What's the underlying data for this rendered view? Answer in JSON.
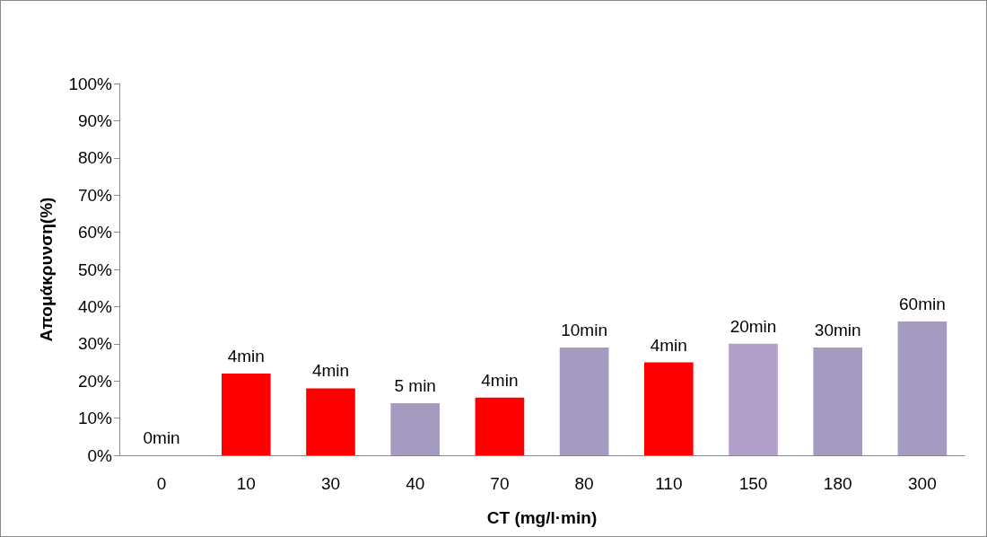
{
  "chart_data": {
    "type": "bar",
    "xlabel": "CT (mg/l·min)",
    "ylabel": "Απομάκρυνση(%)",
    "categories": [
      "0",
      "10",
      "30",
      "40",
      "70",
      "80",
      "110",
      "150",
      "180",
      "300"
    ],
    "values": [
      0,
      22,
      18,
      14,
      15.5,
      29,
      25,
      30,
      29,
      36
    ],
    "colors": [
      "#a59ac0",
      "#ff0000",
      "#ff0000",
      "#a59ac0",
      "#ff0000",
      "#a59ac0",
      "#ff0000",
      "#b1a0c9",
      "#a59ac0",
      "#a59ac0"
    ],
    "annotations": [
      {
        "text": "0min",
        "x": "0",
        "y": 0
      },
      {
        "text": "4min",
        "x": "10",
        "y": 22
      },
      {
        "text": "4min",
        "x": "30",
        "y": 18
      },
      {
        "text": "5 min",
        "x": "40",
        "y": 14
      },
      {
        "text": "4min",
        "x": "70",
        "y": 15.5
      },
      {
        "text": "10min",
        "x": "80",
        "y": 29
      },
      {
        "text": "4min",
        "x": "110",
        "y": 25
      },
      {
        "text": "20min",
        "x": "150",
        "y": 30
      },
      {
        "text": "30min",
        "x": "180",
        "y": 29
      },
      {
        "text": "60min",
        "x": "300",
        "y": 36
      }
    ],
    "ylim": [
      0,
      100
    ],
    "yticks": [
      {
        "value": 0,
        "label": "0%"
      },
      {
        "value": 10,
        "label": "10%"
      },
      {
        "value": 20,
        "label": "20%"
      },
      {
        "value": 30,
        "label": "30%"
      },
      {
        "value": 40,
        "label": "40%"
      },
      {
        "value": 50,
        "label": "50%"
      },
      {
        "value": 60,
        "label": "60%"
      },
      {
        "value": 70,
        "label": "70%"
      },
      {
        "value": 80,
        "label": "80%"
      },
      {
        "value": 90,
        "label": "90%"
      },
      {
        "value": 100,
        "label": "100%"
      }
    ],
    "grid": false
  }
}
